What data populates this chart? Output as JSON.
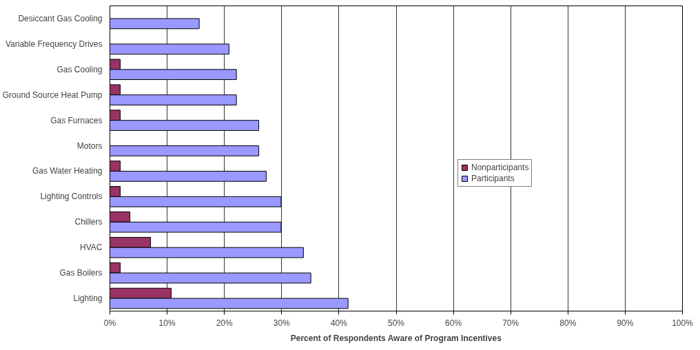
{
  "chart_data": {
    "type": "bar",
    "orientation": "horizontal",
    "categories": [
      "Desiccant Gas Cooling",
      "Variable Frequency Drives",
      "Gas Cooling",
      "Ground Source Heat Pump",
      "Gas Furnaces",
      "Motors",
      "Gas Water Heating",
      "Lighting Controls",
      "Chillers",
      "HVAC",
      "Gas Boilers",
      "Lighting"
    ],
    "series": [
      {
        "name": "Nonparticipants",
        "color": "#993366",
        "values": [
          null,
          null,
          1.8,
          1.8,
          1.8,
          null,
          1.8,
          1.8,
          3.5,
          7.1,
          1.8,
          10.7
        ]
      },
      {
        "name": "Participants",
        "color": "#9999ff",
        "values": [
          15.6,
          20.8,
          22.1,
          22.1,
          26.0,
          26.0,
          27.3,
          29.9,
          29.9,
          33.8,
          35.1,
          41.6
        ]
      }
    ],
    "xlabel": "Percent of Respondents Aware of Program Incentives",
    "xlim": [
      0,
      100
    ],
    "xticks": [
      {
        "value": 0,
        "label": "0%"
      },
      {
        "value": 10,
        "label": "10%"
      },
      {
        "value": 20,
        "label": "20%"
      },
      {
        "value": 30,
        "label": "30%"
      },
      {
        "value": 40,
        "label": "40%"
      },
      {
        "value": 50,
        "label": "50%"
      },
      {
        "value": 60,
        "label": "60%"
      },
      {
        "value": 70,
        "label": "70%"
      },
      {
        "value": 80,
        "label": "80%"
      },
      {
        "value": 90,
        "label": "90%"
      },
      {
        "value": 100,
        "label": "100%"
      }
    ],
    "grid": "x",
    "legend": "right"
  }
}
